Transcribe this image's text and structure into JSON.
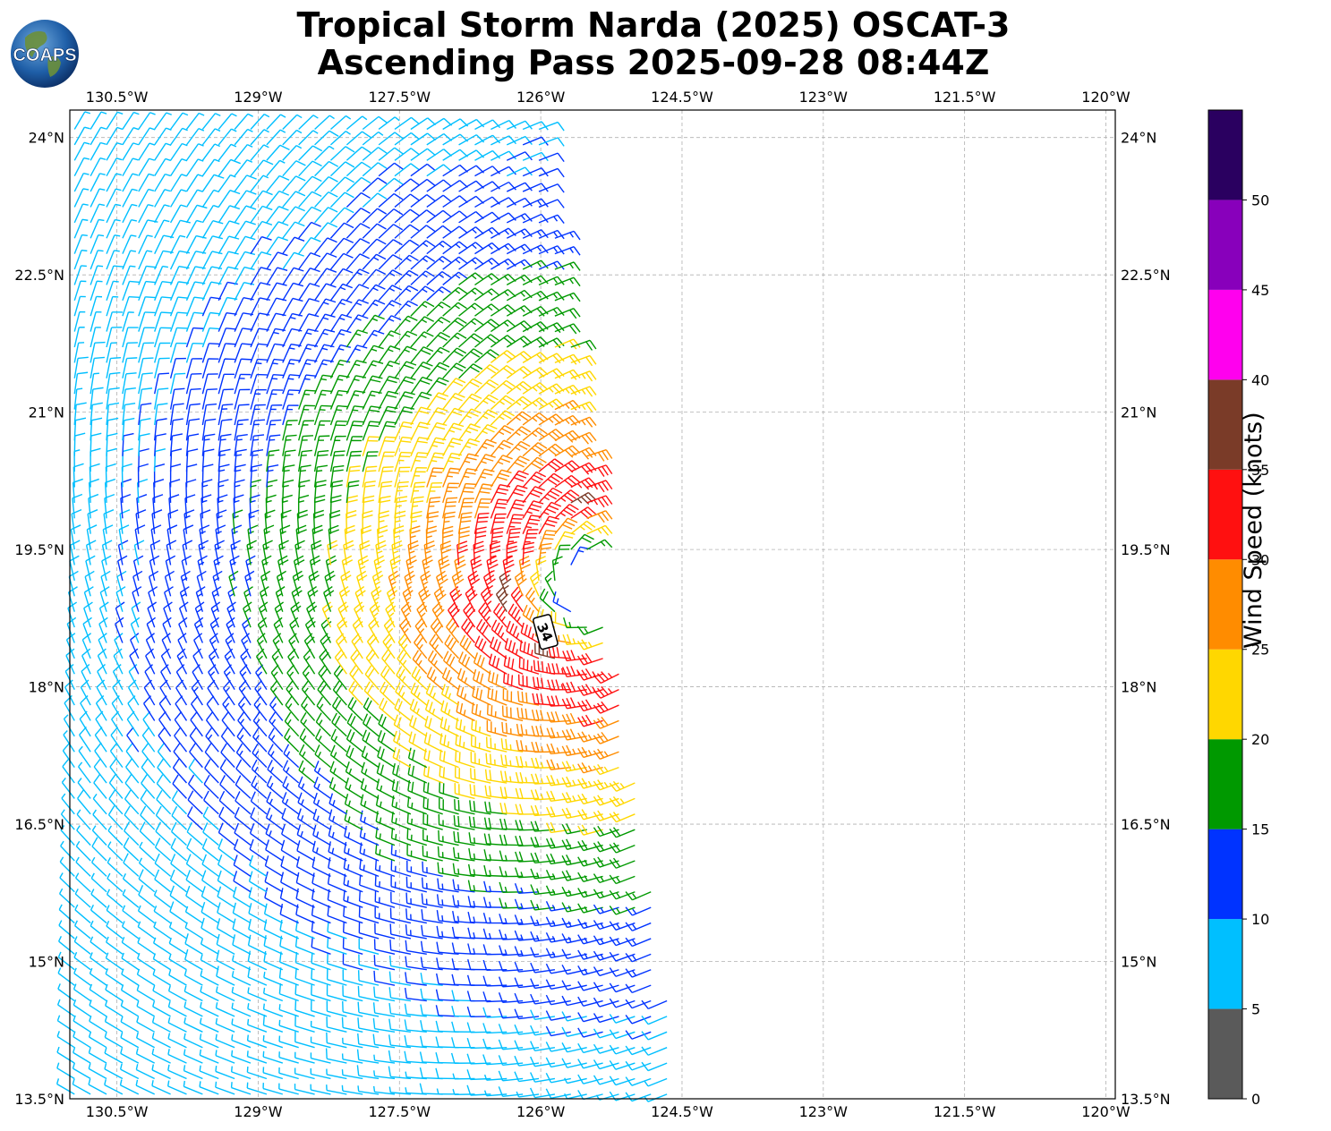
{
  "title": {
    "line1": "Tropical Storm Narda (2025) OSCAT-3",
    "line2": "Ascending Pass 2025-09-28 08:44Z"
  },
  "logo": {
    "text": "COAPS",
    "icon": "globe-icon"
  },
  "map": {
    "lon_range": [
      -131.0,
      -119.9
    ],
    "lat_range": [
      13.5,
      24.3
    ],
    "lon_ticks": [
      "130.5°W",
      "129°W",
      "127.5°W",
      "126°W",
      "124.5°W",
      "123°W",
      "121.5°W",
      "120°W"
    ],
    "lon_tick_values": [
      -130.5,
      -129,
      -127.5,
      -126,
      -124.5,
      -123,
      -121.5,
      -120
    ],
    "lat_ticks": [
      "24°N",
      "22.5°N",
      "21°N",
      "19.5°N",
      "18°N",
      "16.5°N",
      "15°N",
      "13.5°N"
    ],
    "lat_tick_values": [
      24,
      22.5,
      21,
      19.5,
      18,
      16.5,
      15,
      13.5
    ],
    "grid": true,
    "swath_east_edge": {
      "lat_north": 24.3,
      "lon_north": -126.05,
      "lat_south": 13.5,
      "lon_south": -124.5
    },
    "storm_center": {
      "lat": 19.1,
      "lon": -125.4
    },
    "max_wind_kt": 36,
    "wind_field_note": "cyclonic circulation of wind barbs, speeds increasing toward the storm core"
  },
  "marker": {
    "label": "34"
  },
  "colorbar": {
    "label": "Wind Speed (knots)",
    "ticks": [
      "0",
      "5",
      "10",
      "15",
      "20",
      "25",
      "30",
      "35",
      "40",
      "45",
      "50"
    ],
    "bins": [
      {
        "from": 0,
        "to": 5,
        "color": "#5a5a5a"
      },
      {
        "from": 5,
        "to": 10,
        "color": "#00bfff"
      },
      {
        "from": 10,
        "to": 15,
        "color": "#0033ff"
      },
      {
        "from": 15,
        "to": 20,
        "color": "#009900"
      },
      {
        "from": 20,
        "to": 25,
        "color": "#ffd700"
      },
      {
        "from": 25,
        "to": 30,
        "color": "#ff8c00"
      },
      {
        "from": 30,
        "to": 35,
        "color": "#ff1010"
      },
      {
        "from": 35,
        "to": 40,
        "color": "#7a3b28"
      },
      {
        "from": 40,
        "to": 45,
        "color": "#ff00ee"
      },
      {
        "from": 45,
        "to": 50,
        "color": "#8800bb"
      },
      {
        "from": 50,
        "to": 55,
        "color": "#2a0060"
      }
    ]
  }
}
